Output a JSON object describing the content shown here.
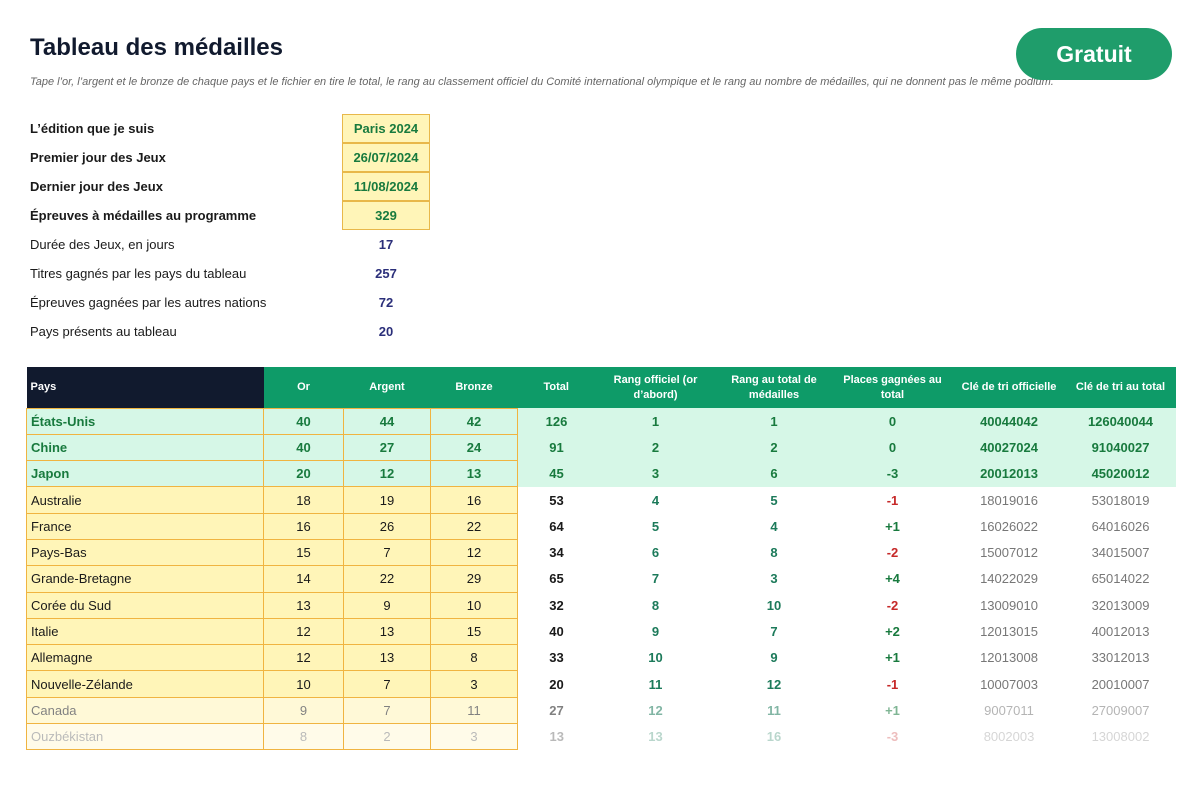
{
  "header": {
    "title": "Tableau des médailles",
    "subtitle": "Tape l’or, l’argent et le bronze de chaque pays et le fichier en tire le total, le rang au classement officiel du Comité international olympique et le rang au nombre de médailles, qui ne donnent pas le même podium.",
    "button_label": "Gratuit"
  },
  "colors": {
    "accent": "#1f9d6b",
    "header_dark": "#111a2e",
    "input_fill": "#fff5b8",
    "top_fill": "#d6f7e7",
    "negative": "#c62828"
  },
  "info": [
    {
      "label": "L’édition que je suis",
      "value": "Paris 2024"
    },
    {
      "label": "Premier jour des Jeux",
      "value": "26/07/2024"
    },
    {
      "label": "Dernier jour des Jeux",
      "value": "11/08/2024"
    },
    {
      "label": "Épreuves à médailles au programme",
      "value": "329"
    },
    {
      "label": "Durée des Jeux, en jours",
      "value": "17"
    },
    {
      "label": "Titres gagnés par les pays du tableau",
      "value": "257"
    },
    {
      "label": "Épreuves gagnées par les autres nations",
      "value": "72"
    },
    {
      "label": "Pays présents au tableau",
      "value": "20"
    }
  ],
  "table": {
    "headers": [
      "Pays",
      "Or",
      "Argent",
      "Bronze",
      "Total",
      "Rang officiel (or d’abord)",
      "Rang au total de médailles",
      "Places gagnées au total",
      "Clé de tri officielle",
      "Clé de tri au total"
    ],
    "rows": [
      [
        "États-Unis",
        "40",
        "44",
        "42",
        "126",
        "1",
        "1",
        "0",
        "40044042",
        "126040044"
      ],
      [
        "Chine",
        "40",
        "27",
        "24",
        "91",
        "2",
        "2",
        "0",
        "40027024",
        "91040027"
      ],
      [
        "Japon",
        "20",
        "12",
        "13",
        "45",
        "3",
        "6",
        "-3",
        "20012013",
        "45020012"
      ],
      [
        "Australie",
        "18",
        "19",
        "16",
        "53",
        "4",
        "5",
        "-1",
        "18019016",
        "53018019"
      ],
      [
        "France",
        "16",
        "26",
        "22",
        "64",
        "5",
        "4",
        "+1",
        "16026022",
        "64016026"
      ],
      [
        "Pays-Bas",
        "15",
        "7",
        "12",
        "34",
        "6",
        "8",
        "-2",
        "15007012",
        "34015007"
      ],
      [
        "Grande-Bretagne",
        "14",
        "22",
        "29",
        "65",
        "7",
        "3",
        "+4",
        "14022029",
        "65014022"
      ],
      [
        "Corée du Sud",
        "13",
        "9",
        "10",
        "32",
        "8",
        "10",
        "-2",
        "13009010",
        "32013009"
      ],
      [
        "Italie",
        "12",
        "13",
        "15",
        "40",
        "9",
        "7",
        "+2",
        "12013015",
        "40012013"
      ],
      [
        "Allemagne",
        "12",
        "13",
        "8",
        "33",
        "10",
        "9",
        "+1",
        "12013008",
        "33012013"
      ],
      [
        "Nouvelle-Zélande",
        "10",
        "7",
        "3",
        "20",
        "11",
        "12",
        "-1",
        "10007003",
        "20010007"
      ],
      [
        "Canada",
        "9",
        "7",
        "11",
        "27",
        "12",
        "11",
        "+1",
        "9007011",
        "27009007"
      ],
      [
        "Ouzbékistan",
        "8",
        "2",
        "3",
        "13",
        "13",
        "16",
        "-3",
        "8002003",
        "13008002"
      ]
    ]
  }
}
